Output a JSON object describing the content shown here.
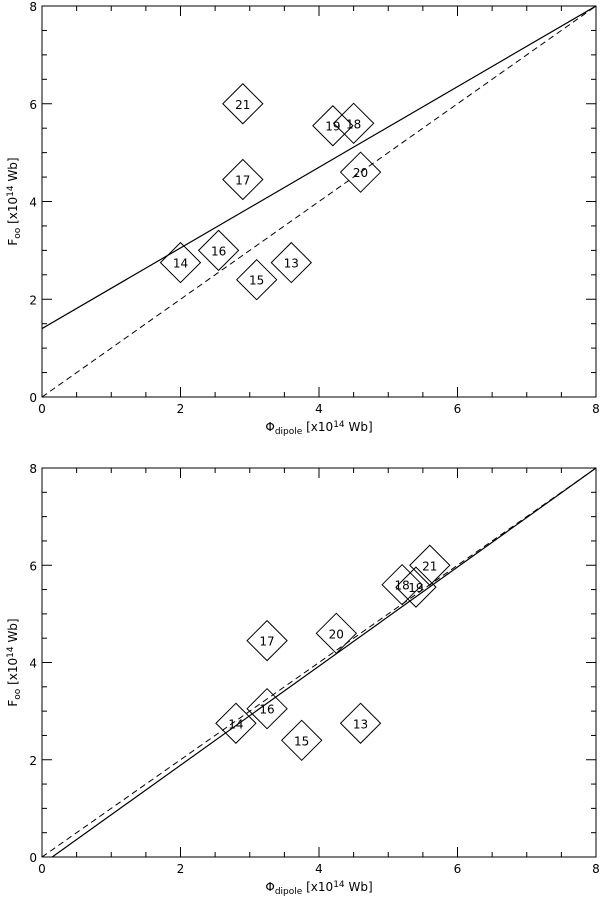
{
  "chart_data": [
    {
      "type": "scatter",
      "xlabel": {
        "main": "Φ",
        "sub": "dipole",
        "rest": " [x10",
        "sup": "14",
        "tail": " Wb]"
      },
      "ylabel": {
        "main": "F",
        "sub": "oo",
        "rest": " [x10",
        "sup": "14",
        "tail": " Wb]"
      },
      "xlim": [
        0,
        8
      ],
      "ylim": [
        0,
        8
      ],
      "xticks": [
        "0",
        "2",
        "4",
        "6",
        "8"
      ],
      "yticks": [
        "0",
        "2",
        "4",
        "6",
        "8"
      ],
      "points": [
        {
          "label": "13",
          "x": 3.6,
          "y": 2.75
        },
        {
          "label": "14",
          "x": 2.0,
          "y": 2.75
        },
        {
          "label": "15",
          "x": 3.1,
          "y": 2.4
        },
        {
          "label": "16",
          "x": 2.55,
          "y": 3.0
        },
        {
          "label": "17",
          "x": 2.9,
          "y": 4.45
        },
        {
          "label": "18",
          "x": 4.5,
          "y": 5.6
        },
        {
          "label": "19",
          "x": 4.2,
          "y": 5.55
        },
        {
          "label": "20",
          "x": 4.6,
          "y": 4.6
        },
        {
          "label": "21",
          "x": 2.9,
          "y": 6.0
        }
      ],
      "lines": [
        {
          "style": "solid",
          "x": [
            0,
            8
          ],
          "y": [
            1.4,
            8.0
          ]
        },
        {
          "style": "dashed",
          "x": [
            0,
            8
          ],
          "y": [
            0,
            8
          ]
        }
      ]
    },
    {
      "type": "scatter",
      "xlabel": {
        "main": "Φ",
        "sub": "dipole",
        "rest": " [x10",
        "sup": "14",
        "tail": " Wb]"
      },
      "ylabel": {
        "main": "F",
        "sub": "oo",
        "rest": " [x10",
        "sup": "14",
        "tail": " Wb]"
      },
      "xlim": [
        0,
        8
      ],
      "ylim": [
        0,
        8
      ],
      "xticks": [
        "0",
        "2",
        "4",
        "6",
        "8"
      ],
      "yticks": [
        "0",
        "2",
        "4",
        "6",
        "8"
      ],
      "points": [
        {
          "label": "13",
          "x": 4.6,
          "y": 2.75
        },
        {
          "label": "14",
          "x": 2.8,
          "y": 2.75
        },
        {
          "label": "15",
          "x": 3.75,
          "y": 2.4
        },
        {
          "label": "16",
          "x": 3.25,
          "y": 3.05
        },
        {
          "label": "17",
          "x": 3.25,
          "y": 4.45
        },
        {
          "label": "18",
          "x": 5.2,
          "y": 5.6
        },
        {
          "label": "19",
          "x": 5.4,
          "y": 5.55
        },
        {
          "label": "20",
          "x": 4.25,
          "y": 4.6
        },
        {
          "label": "21",
          "x": 5.6,
          "y": 6.0
        }
      ],
      "lines": [
        {
          "style": "solid",
          "x": [
            0,
            8
          ],
          "y": [
            -0.15,
            8.0
          ]
        },
        {
          "style": "dashed",
          "x": [
            0,
            8
          ],
          "y": [
            0,
            8
          ]
        }
      ]
    }
  ]
}
